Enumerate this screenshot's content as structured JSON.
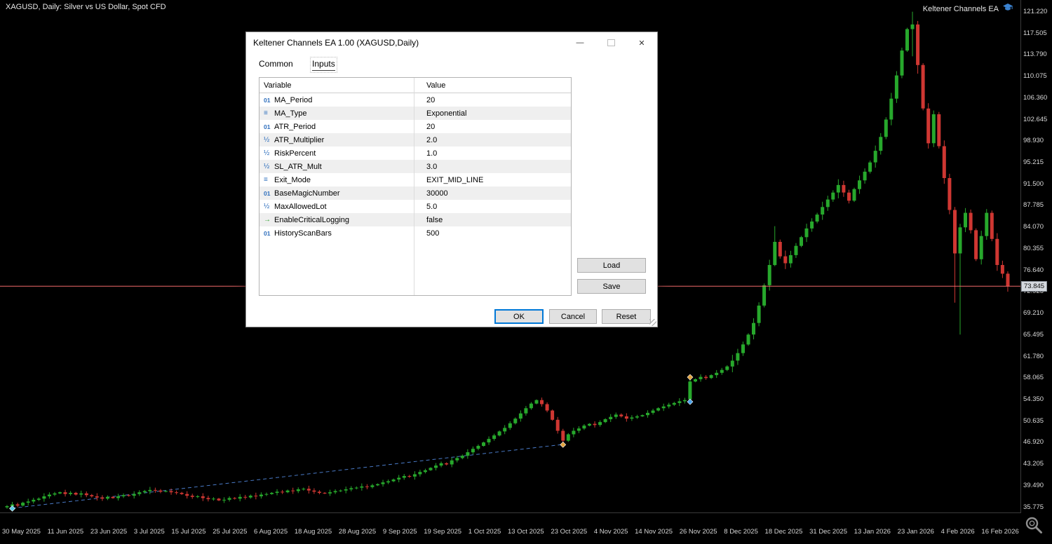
{
  "chart": {
    "symbol_title": "XAGUSD, Daily:  Silver vs US Dollar, Spot CFD",
    "ea_label": "Keltener Channels EA",
    "current_price": "73.845",
    "price_ticks": [
      "121.220",
      "117.505",
      "113.790",
      "110.075",
      "106.360",
      "102.645",
      "98.930",
      "95.215",
      "91.500",
      "87.785",
      "84.070",
      "80.355",
      "76.640",
      "72.925",
      "69.210",
      "65.495",
      "61.780",
      "58.065",
      "54.350",
      "50.635",
      "46.920",
      "43.205",
      "39.490",
      "35.775"
    ],
    "date_labels": [
      "30 May 2025",
      "11 Jun 2025",
      "23 Jun 2025",
      "3 Jul 2025",
      "15 Jul 2025",
      "25 Jul 2025",
      "6 Aug 2025",
      "18 Aug 2025",
      "28 Aug 2025",
      "9 Sep 2025",
      "19 Sep 2025",
      "1 Oct 2025",
      "13 Oct 2025",
      "23 Oct 2025",
      "4 Nov 2025",
      "14 Nov 2025",
      "26 Nov 2025",
      "8 Dec 2025",
      "18 Dec 2025",
      "31 Dec 2025",
      "13 Jan 2026",
      "23 Jan 2026",
      "4 Feb 2026",
      "16 Feb 2026"
    ],
    "colors": {
      "up": "#27a82c",
      "down": "#cf3732",
      "bid_line": "#ef6a6a",
      "trendline": "#4a7bc8",
      "background": "#000000"
    }
  },
  "chart_data": {
    "type": "candlestick",
    "symbol": "XAGUSD",
    "timeframe": "Daily",
    "ylim": [
      35.775,
      121.22
    ],
    "x_range": [
      "30 May 2025",
      "16 Feb 2026"
    ],
    "first_open": 35.7,
    "closes": [
      35.9,
      36.2,
      36.0,
      36.5,
      36.7,
      37.0,
      37.2,
      37.6,
      37.9,
      38.1,
      38.3,
      38.0,
      38.2,
      37.9,
      38.1,
      37.8,
      37.6,
      37.4,
      37.2,
      37.5,
      37.3,
      37.6,
      37.8,
      37.7,
      38.0,
      38.3,
      38.5,
      38.7,
      38.6,
      38.4,
      38.5,
      38.3,
      38.2,
      38.0,
      37.7,
      37.5,
      37.6,
      37.3,
      37.1,
      37.2,
      36.9,
      37.0,
      37.3,
      37.2,
      37.5,
      37.4,
      37.7,
      37.6,
      37.9,
      38.0,
      38.2,
      38.4,
      38.3,
      38.6,
      38.5,
      38.8,
      38.9,
      38.6,
      38.4,
      38.2,
      38.1,
      38.3,
      38.5,
      38.6,
      38.8,
      39.0,
      39.1,
      39.3,
      39.2,
      39.5,
      39.7,
      40.0,
      40.2,
      40.5,
      40.8,
      41.1,
      41.0,
      41.4,
      41.8,
      42.1,
      42.5,
      42.9,
      43.3,
      43.1,
      43.8,
      44.2,
      44.6,
      45.2,
      45.8,
      46.3,
      46.9,
      47.5,
      48.1,
      48.8,
      49.4,
      50.2,
      51.0,
      51.9,
      52.8,
      53.6,
      54.2,
      53.5,
      52.4,
      50.8,
      48.9,
      47.2,
      48.3,
      48.9,
      49.3,
      49.8,
      50.1,
      49.9,
      50.4,
      50.9,
      51.3,
      51.7,
      51.4,
      51.0,
      51.2,
      51.4,
      51.6,
      52.0,
      52.4,
      52.8,
      53.1,
      53.4,
      53.7,
      54.0,
      54.2,
      57.4,
      57.8,
      58.2,
      58.0,
      58.5,
      58.9,
      59.4,
      60.0,
      61.0,
      62.3,
      63.8,
      65.5,
      67.5,
      70.5,
      74.0,
      77.5,
      81.5,
      79.0,
      77.8,
      79.2,
      80.8,
      82.3,
      83.8,
      85.0,
      86.2,
      87.5,
      88.8,
      90.0,
      91.3,
      90.0,
      88.6,
      90.6,
      92.1,
      93.6,
      95.2,
      97.2,
      99.6,
      102.6,
      106.2,
      110.2,
      114.5,
      118.2,
      119.0,
      112.0,
      104.5,
      98.5,
      103.5,
      98.0,
      92.5,
      87.0,
      79.5,
      84.0,
      86.5,
      83.5,
      78.5,
      82.5,
      86.5,
      82.0,
      77.5,
      76.0,
      73.845
    ],
    "overrides": {
      "0": [
        35.7,
        36.1,
        35.45,
        35.9
      ],
      "129": [
        54.3,
        58.2,
        54.15,
        57.4
      ],
      "145": [
        77.5,
        84.2,
        77.3,
        81.5
      ],
      "171": [
        118.2,
        121.2,
        113.5,
        119.0
      ],
      "172": [
        119.0,
        119.6,
        110.5,
        112.0
      ],
      "179": [
        87.0,
        87.5,
        71.0,
        79.5
      ],
      "180": [
        79.5,
        84.6,
        65.5,
        84.0
      ],
      "189": [
        76.0,
        76.4,
        72.9,
        73.845
      ]
    },
    "trendline": {
      "from_bar": 1,
      "from_price": 35.55,
      "to_bar": 105,
      "to_price": 46.55,
      "style": "dashed"
    },
    "markers": [
      {
        "name": "trend-start-marker",
        "shape": "diamond",
        "color": "#5bc8e2",
        "bar": 1,
        "price": 35.5
      },
      {
        "name": "october-exit-marker",
        "shape": "diamond",
        "color": "#e2a23b",
        "bar": 105,
        "price": 46.5
      },
      {
        "name": "november-entry-marker",
        "shape": "diamond",
        "color": "#4aa3e8",
        "bar": 129,
        "price": 53.9
      },
      {
        "name": "november-exit-marker",
        "shape": "diamond",
        "color": "#e2a23b",
        "bar": 129,
        "price": 58.15
      }
    ]
  },
  "dialog": {
    "title": "Keltener Channels EA 1.00 (XAGUSD,Daily)",
    "tabs": [
      "Common",
      "Inputs"
    ],
    "active_tab": "Inputs",
    "window_buttons": {
      "minimize_glyph": "—",
      "close_glyph": "✕"
    },
    "table": {
      "headers": [
        "Variable",
        "Value"
      ],
      "icon_glyphs": {
        "int": "01",
        "double": "½",
        "enum": "≡",
        "bool": "→"
      },
      "rows": [
        {
          "icon": "int",
          "variable": "MA_Period",
          "value": "20"
        },
        {
          "icon": "enum",
          "variable": "MA_Type",
          "value": "Exponential"
        },
        {
          "icon": "int",
          "variable": "ATR_Period",
          "value": "20"
        },
        {
          "icon": "double",
          "variable": "ATR_Multiplier",
          "value": "2.0"
        },
        {
          "icon": "double",
          "variable": "RiskPercent",
          "value": "1.0"
        },
        {
          "icon": "double",
          "variable": "SL_ATR_Mult",
          "value": "3.0"
        },
        {
          "icon": "enum",
          "variable": "Exit_Mode",
          "value": "EXIT_MID_LINE"
        },
        {
          "icon": "int",
          "variable": "BaseMagicNumber",
          "value": "30000"
        },
        {
          "icon": "double",
          "variable": "MaxAllowedLot",
          "value": "5.0"
        },
        {
          "icon": "bool",
          "variable": "EnableCriticalLogging",
          "value": "false"
        },
        {
          "icon": "int",
          "variable": "HistoryScanBars",
          "value": "500"
        }
      ]
    },
    "side_buttons": {
      "load": "Load",
      "save": "Save"
    },
    "bottom_buttons": {
      "ok": "OK",
      "cancel": "Cancel",
      "reset": "Reset"
    }
  }
}
